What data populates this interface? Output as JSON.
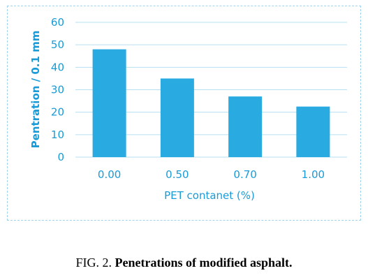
{
  "chart_data": {
    "type": "bar",
    "categories": [
      "0.00",
      "0.50",
      "0.70",
      "1.00"
    ],
    "values": [
      48,
      35,
      27,
      22.5
    ],
    "xlabel": "PET contanet (%)",
    "ylabel": "Pentration / 0.1 mm",
    "ylim": [
      0,
      60
    ],
    "yticks": [
      "0",
      "10",
      "20",
      "30",
      "40",
      "50",
      "60"
    ],
    "grid": true,
    "bar_color": "#29abe2",
    "text_color": "#1a9bd7"
  },
  "caption": {
    "prefix": "FIG. 2.",
    "title": "Penetrations of modified asphalt."
  }
}
